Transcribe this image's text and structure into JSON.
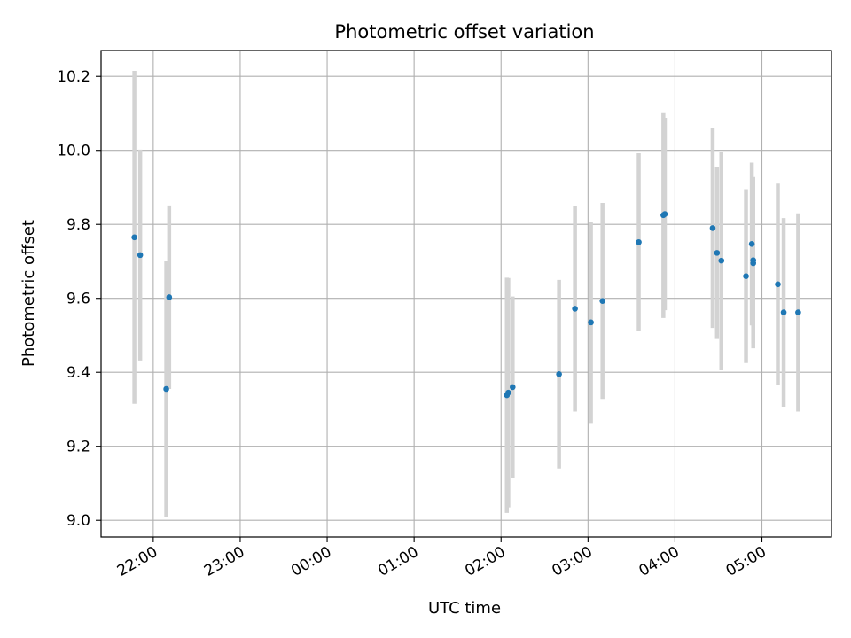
{
  "chart_data": {
    "type": "scatter",
    "title": "Photometric offset variation",
    "xlabel": "UTC time",
    "ylabel": "Photometric offset",
    "grid": true,
    "x_axis": {
      "unit": "UTC time (hours, day 1 evening to day 2 morning)",
      "range": [
        "21:24",
        "05:48"
      ],
      "ticks": [
        "22:00",
        "23:00",
        "00:00",
        "01:00",
        "02:00",
        "03:00",
        "04:00",
        "05:00"
      ]
    },
    "y_axis": {
      "range": [
        8.955,
        10.27
      ],
      "ticks": [
        "9.0",
        "9.2",
        "9.4",
        "9.6",
        "9.8",
        "10.0",
        "10.2"
      ]
    },
    "colors": {
      "points": "#1f77b4",
      "errorbars": "#d3d3d3",
      "grid": "#b0b0b0"
    },
    "points": [
      {
        "x": "21:47",
        "y": 9.765,
        "err": 0.45
      },
      {
        "x": "21:51",
        "y": 9.717,
        "err": 0.285
      },
      {
        "x": "22:09",
        "y": 9.355,
        "err": 0.345
      },
      {
        "x": "22:11",
        "y": 9.603,
        "err": 0.248
      },
      {
        "x": "02:04",
        "y": 9.338,
        "err": 0.318
      },
      {
        "x": "02:05",
        "y": 9.345,
        "err": 0.31
      },
      {
        "x": "02:08",
        "y": 9.36,
        "err": 0.245
      },
      {
        "x": "02:40",
        "y": 9.395,
        "err": 0.255
      },
      {
        "x": "02:51",
        "y": 9.572,
        "err": 0.278
      },
      {
        "x": "03:02",
        "y": 9.535,
        "err": 0.272
      },
      {
        "x": "03:10",
        "y": 9.593,
        "err": 0.265
      },
      {
        "x": "03:35",
        "y": 9.752,
        "err": 0.24
      },
      {
        "x": "03:52",
        "y": 9.825,
        "err": 0.278
      },
      {
        "x": "03:53",
        "y": 9.828,
        "err": 0.26
      },
      {
        "x": "04:26",
        "y": 9.79,
        "err": 0.27
      },
      {
        "x": "04:29",
        "y": 9.723,
        "err": 0.233
      },
      {
        "x": "04:32",
        "y": 9.702,
        "err": 0.295
      },
      {
        "x": "04:49",
        "y": 9.66,
        "err": 0.235
      },
      {
        "x": "04:53",
        "y": 9.747,
        "err": 0.22
      },
      {
        "x": "04:54",
        "y": 9.703,
        "err": 0.225
      },
      {
        "x": "04:54",
        "y": 9.695,
        "err": 0.23
      },
      {
        "x": "05:11",
        "y": 9.638,
        "err": 0.272
      },
      {
        "x": "05:15",
        "y": 9.562,
        "err": 0.255
      },
      {
        "x": "05:25",
        "y": 9.562,
        "err": 0.268
      }
    ]
  }
}
